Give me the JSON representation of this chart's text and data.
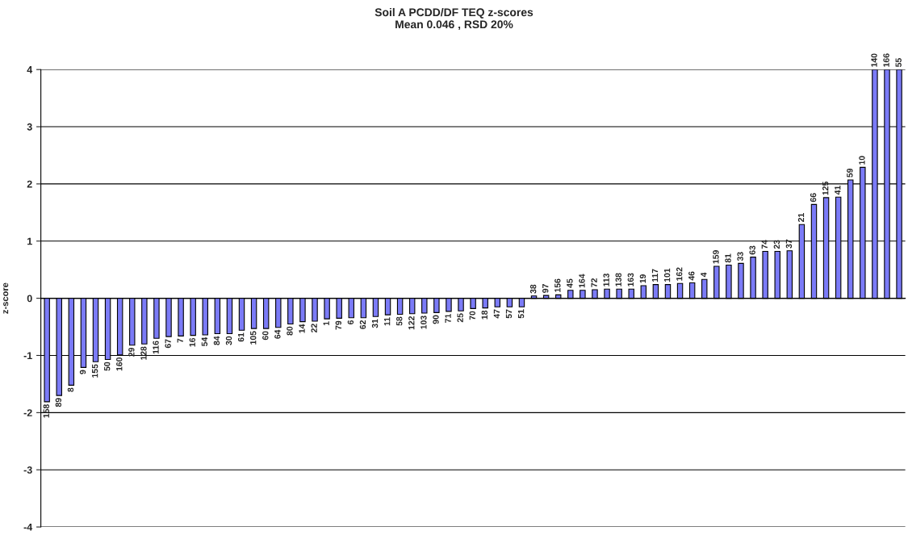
{
  "chart_data": {
    "type": "bar",
    "title": "Soil A PCDD/DF TEQ z-scores\nMean 0.046 , RSD 20%",
    "ylabel": "z-score",
    "categories": [
      "158",
      "89",
      "8",
      "9",
      "155",
      "50",
      "160",
      "29",
      "128",
      "116",
      "67",
      "7",
      "16",
      "54",
      "84",
      "30",
      "61",
      "105",
      "60",
      "64",
      "80",
      "14",
      "22",
      "1",
      "79",
      "6",
      "62",
      "31",
      "11",
      "58",
      "122",
      "103",
      "90",
      "71",
      "25",
      "70",
      "18",
      "47",
      "57",
      "51",
      "38",
      "97",
      "156",
      "45",
      "164",
      "72",
      "113",
      "138",
      "163",
      "19",
      "117",
      "101",
      "162",
      "46",
      "4",
      "159",
      "81",
      "33",
      "63",
      "74",
      "23",
      "37",
      "21",
      "66",
      "125",
      "41",
      "59",
      "10",
      "140",
      "166",
      "55"
    ],
    "values": [
      -1.81,
      -1.7,
      -1.52,
      -1.21,
      -1.11,
      -1.07,
      -0.99,
      -0.82,
      -0.8,
      -0.7,
      -0.67,
      -0.66,
      -0.65,
      -0.64,
      -0.62,
      -0.62,
      -0.56,
      -0.53,
      -0.53,
      -0.51,
      -0.45,
      -0.41,
      -0.4,
      -0.36,
      -0.35,
      -0.34,
      -0.34,
      -0.32,
      -0.29,
      -0.28,
      -0.27,
      -0.26,
      -0.25,
      -0.23,
      -0.22,
      -0.18,
      -0.17,
      -0.15,
      -0.15,
      -0.15,
      0.04,
      0.05,
      0.06,
      0.14,
      0.14,
      0.15,
      0.16,
      0.16,
      0.16,
      0.22,
      0.24,
      0.24,
      0.26,
      0.27,
      0.33,
      0.56,
      0.58,
      0.61,
      0.72,
      0.82,
      0.82,
      0.83,
      1.29,
      1.64,
      1.76,
      1.77,
      2.07,
      2.29,
      4,
      4,
      4
    ],
    "color": "#7b7bf7",
    "ylim": [
      -4,
      4
    ],
    "yticks": [
      -4,
      -3,
      -2,
      -1,
      0,
      1,
      2,
      3,
      4
    ],
    "grid": "y",
    "legend": false
  }
}
